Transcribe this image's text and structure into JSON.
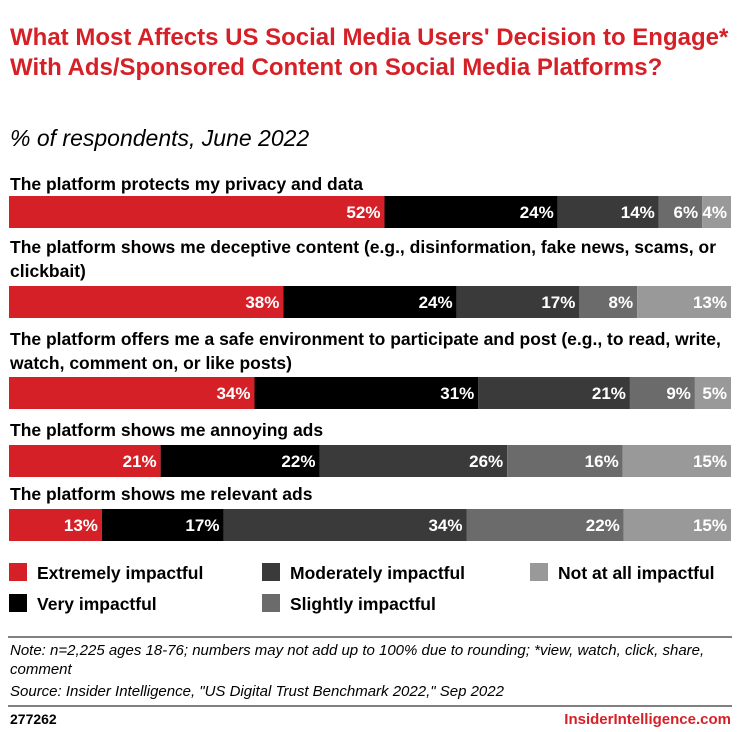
{
  "chart_data": {
    "type": "bar",
    "orientation": "horizontal",
    "stacked": true,
    "title": "What Most Affects US Social Media Users' Decision to Engage* With Ads/Sponsored Content on Social Media Platforms?",
    "subtitle": "% of respondents, June 2022",
    "categories": [
      "The platform protects my privacy and data",
      "The platform shows me deceptive content (e.g., disinformation, fake news, scams, or clickbait)",
      "The platform offers me a safe environment to participate and post (e.g., to read, write, watch, comment on, or like posts)",
      "The platform shows me annoying ads",
      "The platform shows me relevant ads"
    ],
    "series": [
      {
        "name": "Extremely impactful",
        "color": "#d62027",
        "values": [
          52,
          38,
          34,
          21,
          13
        ]
      },
      {
        "name": "Very impactful",
        "color": "#000000",
        "values": [
          24,
          24,
          31,
          22,
          17
        ]
      },
      {
        "name": "Moderately impactful",
        "color": "#3a3a3a",
        "values": [
          14,
          17,
          21,
          26,
          34
        ]
      },
      {
        "name": "Slightly impactful",
        "color": "#6b6b6b",
        "values": [
          6,
          8,
          9,
          16,
          22
        ]
      },
      {
        "name": "Not at all impactful",
        "color": "#999999",
        "values": [
          4,
          13,
          5,
          15,
          15
        ]
      }
    ],
    "value_suffix": "%",
    "grid": false,
    "legend_position": "bottom"
  },
  "footer": {
    "note": "Note: n=2,225 ages 18-76; numbers may not add up to 100% due to rounding; *view, watch, click, share, comment",
    "source": "Source: Insider Intelligence, \"US Digital Trust Benchmark 2022,\" Sep 2022",
    "chart_id": "277262",
    "brand": "InsiderIntelligence.com"
  }
}
